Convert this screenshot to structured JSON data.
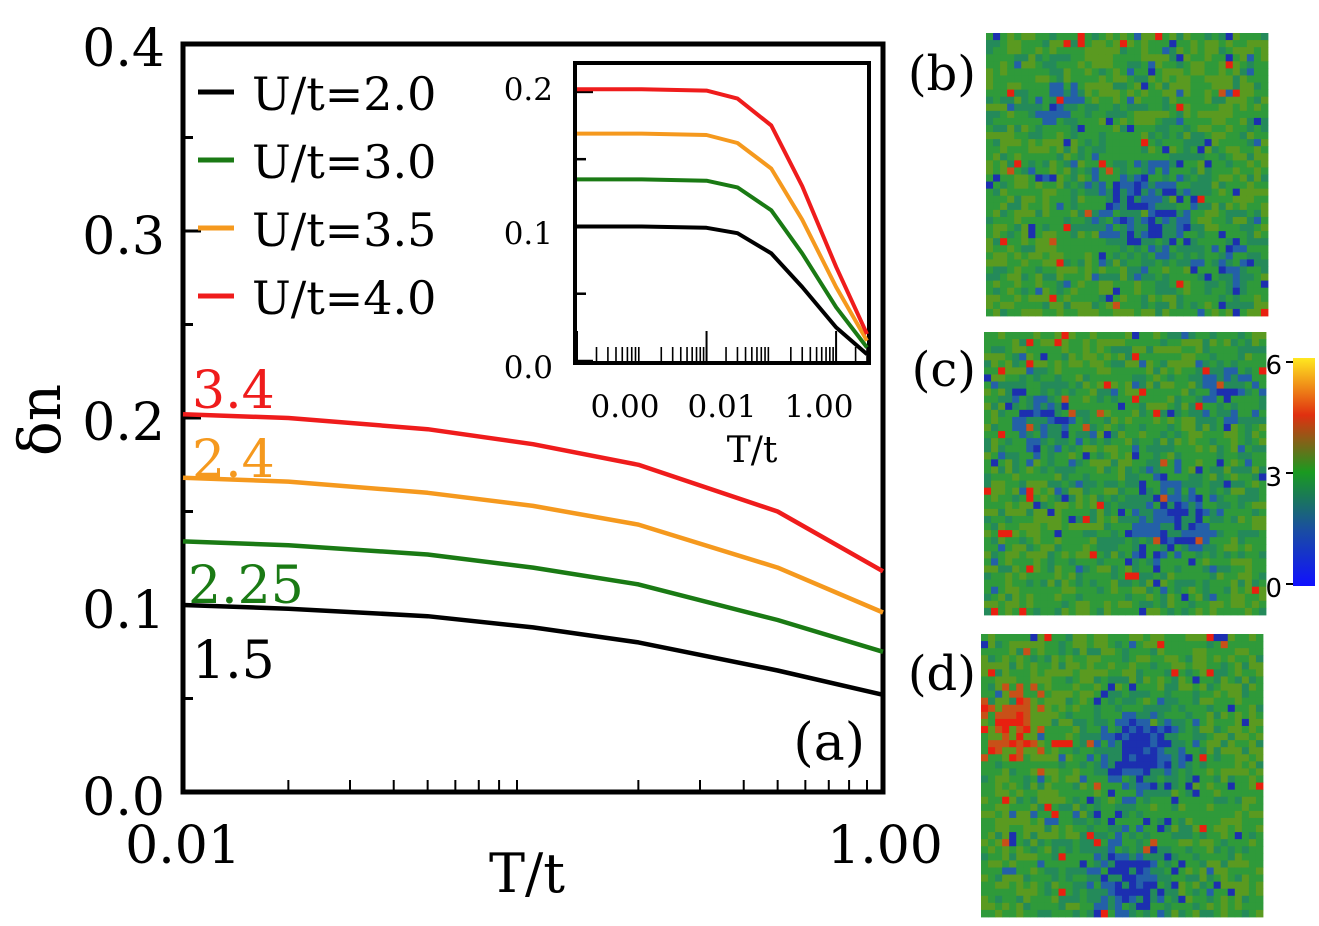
{
  "chart_data": [
    {
      "panel": "(a)",
      "type": "line",
      "xlabel": "T/t",
      "ylabel": "δn",
      "xscale": "log",
      "xlim": [
        0.01,
        1.0
      ],
      "ylim": [
        0.0,
        0.4
      ],
      "xticks": [
        "0.01",
        "1.00"
      ],
      "yticks": [
        "0.0",
        "0.1",
        "0.2",
        "0.3",
        "0.4"
      ],
      "legend_position": "top-left",
      "series": [
        {
          "name": "U/t=2.0",
          "color": "#000000",
          "end_label": "1.5",
          "x": [
            0.01,
            0.02,
            0.05,
            0.1,
            0.2,
            0.5,
            1.0
          ],
          "y": [
            0.1,
            0.098,
            0.094,
            0.088,
            0.08,
            0.065,
            0.052
          ]
        },
        {
          "name": "U/t=3.0",
          "color": "#1a7a14",
          "end_label": "2.25",
          "x": [
            0.01,
            0.02,
            0.05,
            0.1,
            0.2,
            0.5,
            1.0
          ],
          "y": [
            0.134,
            0.132,
            0.127,
            0.12,
            0.111,
            0.092,
            0.075
          ]
        },
        {
          "name": "U/t=3.5",
          "color": "#f5991e",
          "end_label": "2.4",
          "x": [
            0.01,
            0.02,
            0.05,
            0.1,
            0.2,
            0.5,
            1.0
          ],
          "y": [
            0.168,
            0.166,
            0.16,
            0.153,
            0.143,
            0.12,
            0.096
          ]
        },
        {
          "name": "U/t=4.0",
          "color": "#ef1c1c",
          "end_label": "3.4",
          "x": [
            0.01,
            0.02,
            0.05,
            0.1,
            0.2,
            0.5,
            1.0
          ],
          "y": [
            0.202,
            0.2,
            0.194,
            0.186,
            0.175,
            0.15,
            0.118
          ]
        }
      ],
      "annotation": "(a)"
    },
    {
      "panel": "inset",
      "type": "line",
      "xlabel": "T/t",
      "xscale": "log",
      "xlim": [
        0.0001,
        3.0
      ],
      "ylim": [
        0.0,
        0.22
      ],
      "xticks": [
        "0.00",
        "0.01",
        "1.00"
      ],
      "yticks": [
        "0.0",
        "0.1",
        "0.2"
      ],
      "series": [
        {
          "name": "U/t=2.0",
          "color": "#000000",
          "x": [
            0.0001,
            0.001,
            0.01,
            0.03,
            0.1,
            0.3,
            1.0,
            3.0
          ],
          "y": [
            0.1,
            0.1,
            0.099,
            0.095,
            0.08,
            0.055,
            0.025,
            0.005
          ]
        },
        {
          "name": "U/t=3.0",
          "color": "#1a7a14",
          "x": [
            0.0001,
            0.001,
            0.01,
            0.03,
            0.1,
            0.3,
            1.0,
            3.0
          ],
          "y": [
            0.135,
            0.135,
            0.134,
            0.129,
            0.112,
            0.08,
            0.04,
            0.01
          ]
        },
        {
          "name": "U/t=3.5",
          "color": "#f5991e",
          "x": [
            0.0001,
            0.001,
            0.01,
            0.03,
            0.1,
            0.3,
            1.0,
            3.0
          ],
          "y": [
            0.169,
            0.169,
            0.168,
            0.162,
            0.143,
            0.105,
            0.055,
            0.015
          ]
        },
        {
          "name": "U/t=4.0",
          "color": "#ef1c1c",
          "x": [
            0.0001,
            0.001,
            0.01,
            0.03,
            0.1,
            0.3,
            1.0,
            3.0
          ],
          "y": [
            0.202,
            0.202,
            0.201,
            0.195,
            0.175,
            0.13,
            0.07,
            0.02
          ]
        }
      ]
    },
    {
      "type": "heatmap",
      "panels": [
        "(b)",
        "(c)",
        "(d)"
      ],
      "colorbar": {
        "min": 0,
        "max": 6,
        "ticks": [
          "0",
          "3",
          "6"
        ]
      }
    }
  ]
}
